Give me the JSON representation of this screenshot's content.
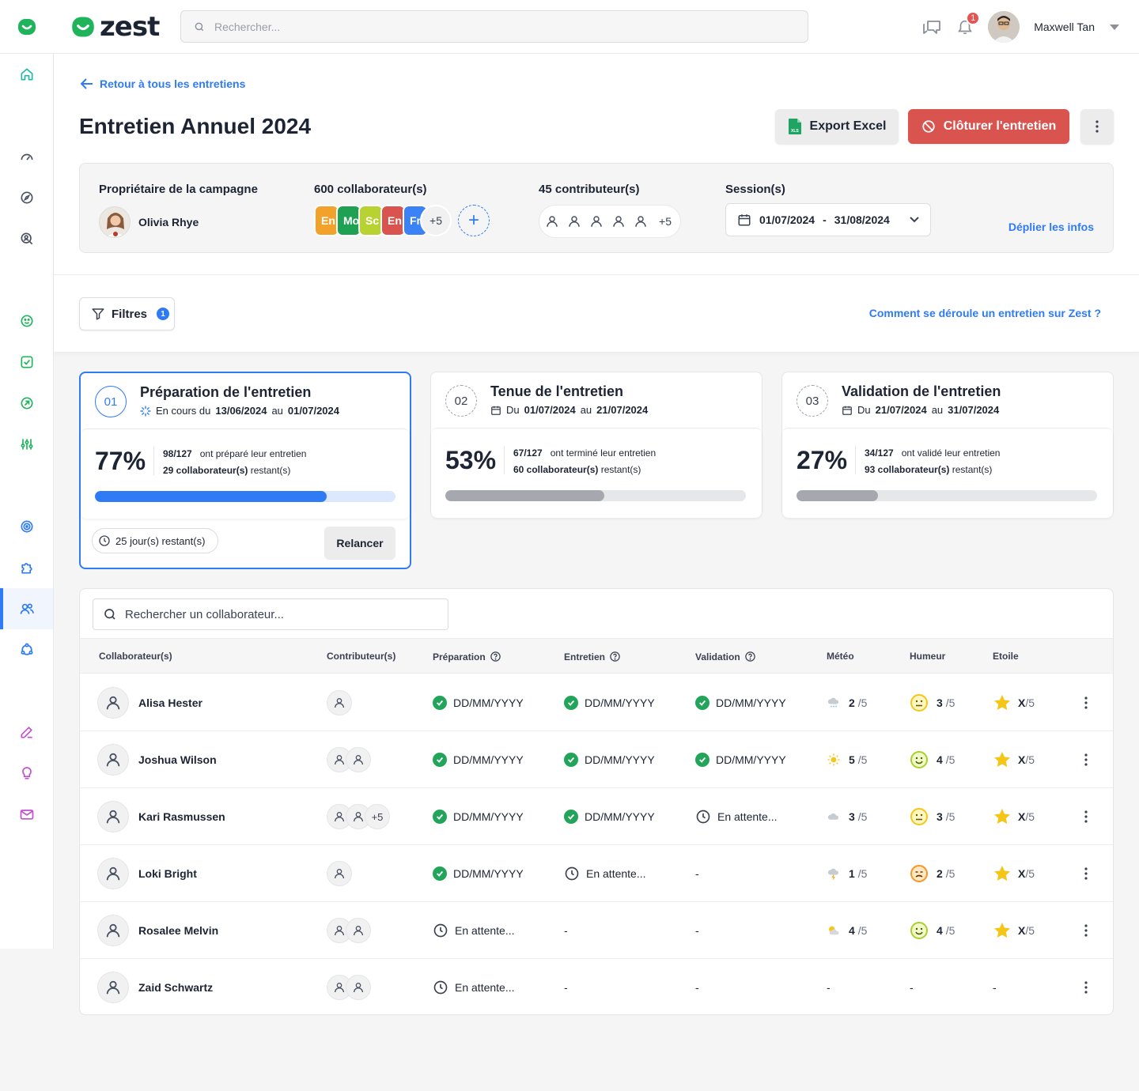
{
  "app": {
    "name": "zest"
  },
  "topbar": {
    "search_placeholder": "Rechercher...",
    "notifications_count": "1",
    "user_name": "Maxwell Tan"
  },
  "header": {
    "back_link": "Retour à tous les entretiens",
    "title": "Entretien Annuel 2024",
    "export_label": "Export Excel",
    "close_label": "Clôturer l'entretien"
  },
  "info": {
    "owner_label": "Propriétaire de la campagne",
    "owner_name": "Olivia Rhye",
    "collab_label": "600 collaborateur(s)",
    "collab_chips": [
      {
        "text": "En",
        "color": "#f2a22a"
      },
      {
        "text": "Mo",
        "color": "#1ea152"
      },
      {
        "text": "Sc",
        "color": "#b8d232"
      },
      {
        "text": "En",
        "color": "#d9534f"
      },
      {
        "text": "Fr",
        "color": "#3b82f6"
      }
    ],
    "collab_more": "+5",
    "contrib_label": "45 contributeur(s)",
    "contrib_more": "+5",
    "session_label": "Session(s)",
    "session_start": "01/07/2024",
    "session_sep": "-",
    "session_end": "31/08/2024",
    "expand_link": "Déplier les infos"
  },
  "toolbar": {
    "filters_label": "Filtres",
    "filters_count": "1",
    "help_link": "Comment se déroule un entretien sur Zest ?"
  },
  "steps": [
    {
      "num": "01",
      "title": "Préparation de l'entretien",
      "sub_prefix": "En cours du",
      "date_from": "13/06/2024",
      "sub_mid": "au",
      "date_to": "01/07/2024",
      "percent": "77%",
      "progress": 0.77,
      "ratio": "98/127",
      "ratio_text": "ont préparé leur entretien",
      "remaining": "29 collaborateur(s)",
      "remaining_text": "restant(s)",
      "days_left": "25 jour(s) restant(s)",
      "remind_label": "Relancer",
      "color": "#2f7bf5"
    },
    {
      "num": "02",
      "title": "Tenue de l'entretien",
      "sub_prefix": "Du",
      "date_from": "01/07/2024",
      "sub_mid": "au",
      "date_to": "21/07/2024",
      "percent": "53%",
      "progress": 0.53,
      "ratio": "67/127",
      "ratio_text": "ont terminé leur entretien",
      "remaining": "60 collaborateur(s)",
      "remaining_text": "restant(s)",
      "color": "#a5a8ae"
    },
    {
      "num": "03",
      "title": "Validation de l'entretien",
      "sub_prefix": "Du",
      "date_from": "21/07/2024",
      "sub_mid": "au",
      "date_to": "31/07/2024",
      "percent": "27%",
      "progress": 0.27,
      "ratio": "34/127",
      "ratio_text": "ont validé leur entretien",
      "remaining": "93 collaborateur(s)",
      "remaining_text": "restant(s)",
      "color": "#a5a8ae"
    }
  ],
  "table": {
    "search_placeholder": "Rechercher un collaborateur...",
    "headers": [
      "Collaborateur(s)",
      "Contributeur(s)",
      "Préparation",
      "Entretien",
      "Validation",
      "Météo",
      "Humeur",
      "Etoile"
    ],
    "rows": [
      {
        "name": "Alisa Hester",
        "contribs": 1,
        "contrib_more": "",
        "prep": "DD/MM/YYYY",
        "prep_state": "done",
        "entretien": "DD/MM/YYYY",
        "entretien_state": "done",
        "validation": "DD/MM/YYYY",
        "validation_state": "done",
        "meteo_icon": "rain-cloud-icon",
        "meteo": "2",
        "humeur_icon": "neutral-face-icon",
        "humeur": "3",
        "etoile": "X",
        "denom": "/5"
      },
      {
        "name": "Joshua Wilson",
        "contribs": 2,
        "contrib_more": "",
        "prep": "DD/MM/YYYY",
        "prep_state": "done",
        "entretien": "DD/MM/YYYY",
        "entretien_state": "done",
        "validation": "DD/MM/YYYY",
        "validation_state": "done",
        "meteo_icon": "sun-icon",
        "meteo": "5",
        "humeur_icon": "smile-face-icon",
        "humeur": "4",
        "etoile": "X",
        "denom": "/5"
      },
      {
        "name": "Kari Rasmussen",
        "contribs": 2,
        "contrib_more": "+5",
        "prep": "DD/MM/YYYY",
        "prep_state": "done",
        "entretien": "DD/MM/YYYY",
        "entretien_state": "done",
        "validation": "En attente...",
        "validation_state": "pending",
        "meteo_icon": "cloud-icon",
        "meteo": "3",
        "humeur_icon": "neutral-face-icon",
        "humeur": "3",
        "etoile": "X",
        "denom": "/5"
      },
      {
        "name": "Loki Bright",
        "contribs": 1,
        "contrib_more": "",
        "prep": "DD/MM/YYYY",
        "prep_state": "done",
        "entretien": "En attente...",
        "entretien_state": "pending",
        "validation": "-",
        "validation_state": "none",
        "meteo_icon": "storm-cloud-icon",
        "meteo": "1",
        "humeur_icon": "tired-face-icon",
        "humeur": "2",
        "etoile": "X",
        "denom": "/5"
      },
      {
        "name": "Rosalee Melvin",
        "contribs": 2,
        "contrib_more": "",
        "prep": "En attente...",
        "prep_state": "pending",
        "entretien": "-",
        "entretien_state": "none",
        "validation": "-",
        "validation_state": "none",
        "meteo_icon": "sun-cloud-icon",
        "meteo": "4",
        "humeur_icon": "smile-face-icon",
        "humeur": "4",
        "etoile": "X",
        "denom": "/5"
      },
      {
        "name": "Zaid Schwartz",
        "contribs": 2,
        "contrib_more": "",
        "prep": "En attente...",
        "prep_state": "pending",
        "entretien": "-",
        "entretien_state": "none",
        "validation": "-",
        "validation_state": "none",
        "meteo_icon": "",
        "meteo": "-",
        "humeur_icon": "",
        "humeur": "-",
        "etoile": "-",
        "denom": ""
      }
    ]
  },
  "colors": {
    "accent": "#2f7bf5",
    "danger": "#d9534f",
    "success": "#22a55a",
    "brand": "#1fb35b"
  }
}
